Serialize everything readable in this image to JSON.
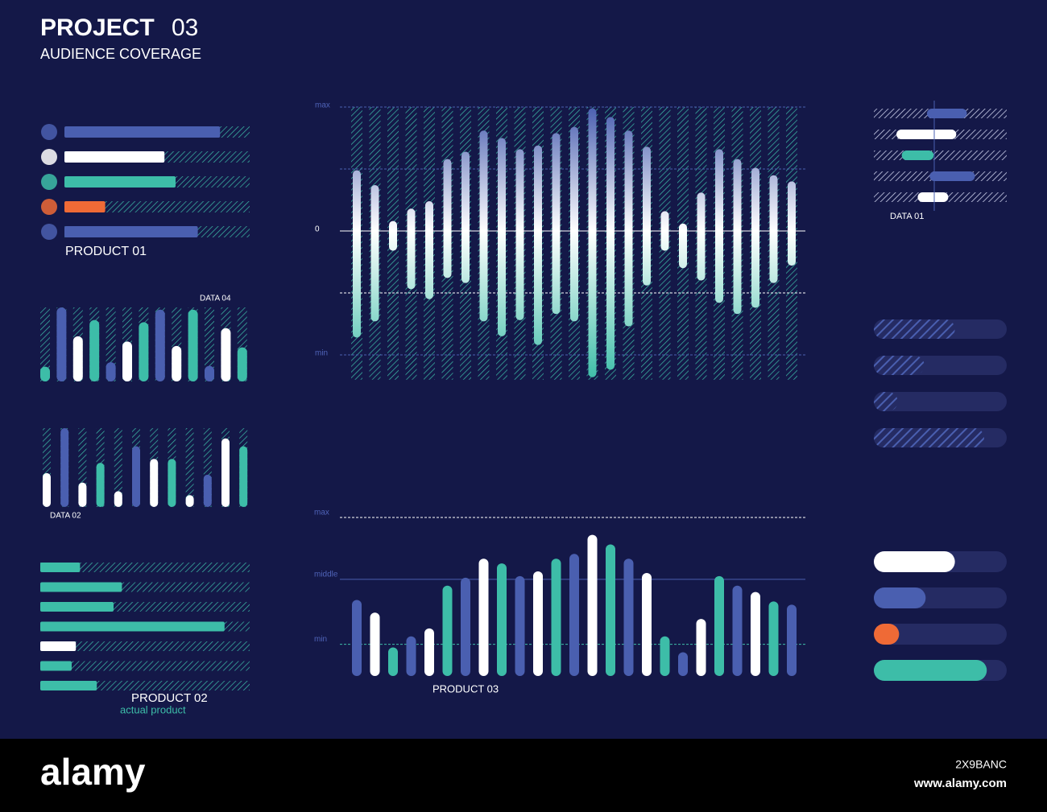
{
  "header": {
    "title": "PROJECT",
    "number": "03",
    "subtitle": "AUDIENCE COVERAGE"
  },
  "footer": {
    "logo": "alamy",
    "id": "2X9BANC",
    "url": "www.alamy.com"
  },
  "chart_data": [
    {
      "type": "hbar",
      "title": "PRODUCT 01",
      "track": "hatched",
      "xlim": [
        0,
        100
      ],
      "values": [
        84,
        54,
        60,
        22,
        72
      ],
      "colors": [
        "#4a5fb0",
        "#ffffff",
        "#3dbda8",
        "#ef6a36",
        "#4a5fb0"
      ]
    },
    {
      "type": "column",
      "title": "DATA 04",
      "track": "hatched",
      "ylim": [
        0,
        100
      ],
      "values": [
        20,
        100,
        61,
        83,
        26,
        54,
        80,
        97,
        48,
        97,
        21,
        72,
        46
      ],
      "colors": [
        "#3dbda8",
        "#4a5fb0",
        "#ffffff",
        "#3dbda8",
        "#4a5fb0",
        "#ffffff",
        "#3dbda8",
        "#4a5fb0",
        "#ffffff",
        "#3dbda8",
        "#4a5fb0",
        "#ffffff",
        "#3dbda8"
      ]
    },
    {
      "type": "column",
      "title": "DATA 02",
      "track": "hatched",
      "ylim": [
        0,
        100
      ],
      "values": [
        43,
        100,
        31,
        56,
        20,
        77,
        61,
        61,
        15,
        41,
        87,
        77
      ],
      "colors": [
        "#ffffff",
        "#4a5fb0",
        "#ffffff",
        "#3dbda8",
        "#ffffff",
        "#4a5fb0",
        "#ffffff",
        "#3dbda8",
        "#ffffff",
        "#4a5fb0",
        "#ffffff",
        "#3dbda8"
      ]
    },
    {
      "type": "hbar",
      "title": "PRODUCT 02",
      "subtitle": "actual product",
      "track": "hatched",
      "xlim": [
        0,
        100
      ],
      "values": [
        19,
        39,
        35,
        88,
        17,
        15,
        27
      ],
      "colors": [
        "#3dbda8",
        "#3dbda8",
        "#3dbda8",
        "#3dbda8",
        "#ffffff",
        "#3dbda8",
        "#3dbda8"
      ]
    },
    {
      "type": "diverging",
      "ylim": [
        -120,
        100
      ],
      "yticks": [
        {
          "value": 100,
          "label": "max"
        },
        0,
        {
          "value": -100,
          "label": "min"
        }
      ],
      "high": [
        49,
        37,
        8,
        18,
        24,
        58,
        64,
        81,
        75,
        66,
        69,
        79,
        84,
        99,
        92,
        81,
        68,
        16,
        6,
        31,
        66,
        58,
        51,
        45,
        40
      ],
      "low": [
        -86,
        -73,
        -16,
        -47,
        -55,
        -38,
        -42,
        -73,
        -85,
        -72,
        -92,
        -67,
        -73,
        -118,
        -112,
        -77,
        -44,
        -16,
        -30,
        -40,
        -58,
        -67,
        -62,
        -42,
        -28
      ],
      "colors": [
        "#4a5fb0",
        "#ffffff",
        "#3dbda8"
      ]
    },
    {
      "type": "column",
      "title": "PRODUCT 03",
      "track": "none",
      "ylim": [
        0,
        100
      ],
      "yticks": [
        {
          "value": 20,
          "label": "min"
        },
        {
          "value": 61,
          "label": "middle"
        },
        {
          "value": 100,
          "label": "max"
        }
      ],
      "values": [
        48,
        40,
        18,
        25,
        30,
        57,
        62,
        74,
        71,
        63,
        66,
        74,
        77,
        89,
        83,
        74,
        65,
        25,
        15,
        36,
        63,
        57,
        53,
        47,
        45
      ],
      "colors": [
        "#4a5fb0",
        "#ffffff",
        "#3dbda8",
        "#4a5fb0",
        "#ffffff",
        "#3dbda8",
        "#4a5fb0",
        "#ffffff",
        "#3dbda8",
        "#4a5fb0",
        "#ffffff",
        "#3dbda8",
        "#4a5fb0",
        "#ffffff",
        "#3dbda8",
        "#4a5fb0",
        "#ffffff",
        "#3dbda8",
        "#4a5fb0",
        "#ffffff",
        "#3dbda8",
        "#4a5fb0",
        "#ffffff",
        "#3dbda8",
        "#4a5fb0"
      ]
    },
    {
      "type": "range",
      "title": "DATA 01",
      "track": "hatched",
      "xlim": [
        0,
        100
      ],
      "starts": [
        40,
        17,
        21,
        42,
        33
      ],
      "ends": [
        70,
        62,
        45,
        76,
        56
      ],
      "colors": [
        "#4a5fb0",
        "#ffffff",
        "#3dbda8",
        "#4a5fb0",
        "#ffffff"
      ]
    },
    {
      "type": "hbar",
      "track": "solid",
      "fill": "hatched",
      "xlim": [
        0,
        100
      ],
      "values": [
        61,
        38,
        18,
        83
      ],
      "colors": [
        "#4a5fb0",
        "#4a5fb0",
        "#4a5fb0",
        "#4a5fb0"
      ]
    },
    {
      "type": "hbar",
      "track": "solid",
      "xlim": [
        0,
        100
      ],
      "values": [
        61,
        39,
        19,
        85
      ],
      "colors": [
        "#ffffff",
        "#4a5fb0",
        "#ef6a36",
        "#3dbda8"
      ]
    }
  ]
}
